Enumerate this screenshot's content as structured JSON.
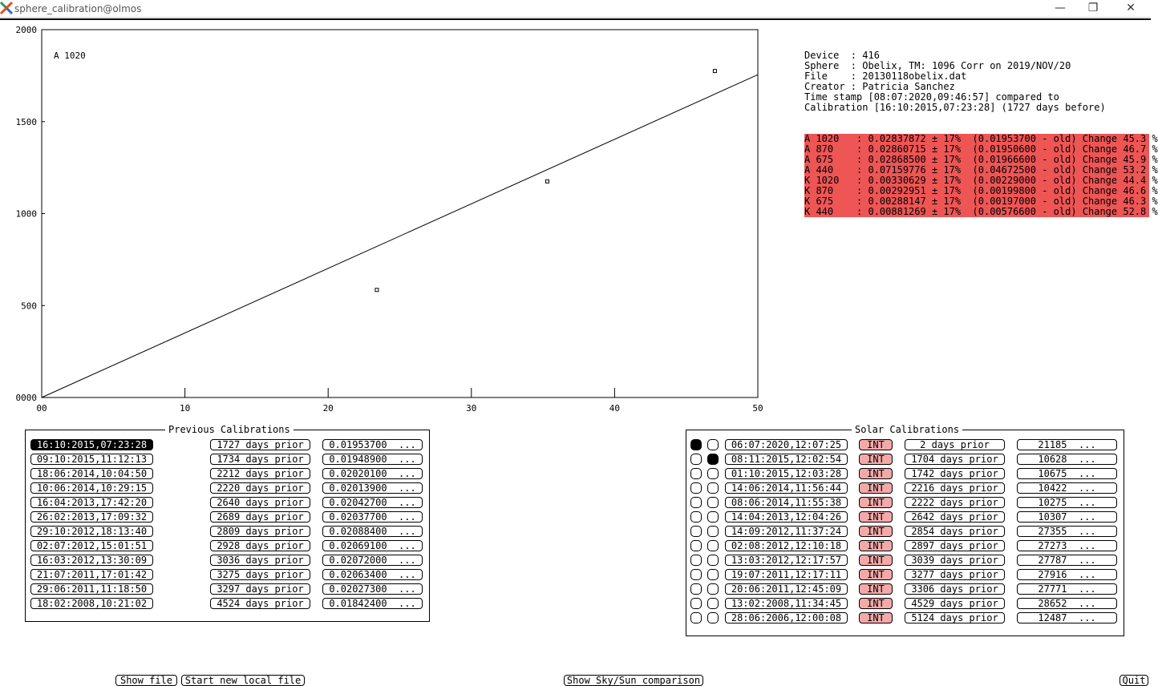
{
  "window": {
    "title": "sphere_calibration@olmos",
    "icon": "x-app-icon",
    "controls": {
      "minimize": "—",
      "restore": "❐",
      "close": "✕"
    }
  },
  "chart_data": {
    "type": "scatter",
    "label": "A 1020",
    "xlim": [
      0,
      50
    ],
    "ylim": [
      0,
      2000
    ],
    "x_ticks": [
      0,
      10,
      20,
      30,
      40,
      50
    ],
    "x_tick_labels": [
      "00",
      "10",
      "20",
      "30",
      "40",
      "50"
    ],
    "y_ticks": [
      0,
      500,
      1000,
      1500,
      2000
    ],
    "y_tick_labels": [
      "0000",
      "500",
      "1000",
      "1500",
      "2000"
    ],
    "points": [
      {
        "x": 23.4,
        "y": 585
      },
      {
        "x": 35.3,
        "y": 1175
      },
      {
        "x": 47.0,
        "y": 1775
      }
    ],
    "fit_line": {
      "x": [
        0,
        50
      ],
      "y": [
        0,
        1755
      ]
    }
  },
  "info": {
    "lines": [
      "Device  : 416",
      "Sphere  : Obelix, TM: 1096 Corr on 2019/NOV/20",
      "File    : 20130118obelix.dat",
      "Creator : Patricia Sanchez",
      "Time stamp [08:07:2020,09:46:57] compared to",
      "Calibration [16:10:2015,07:23:28] (1727 days before)"
    ],
    "alerts": [
      "A 1020   : 0.02837872 ± 17%  (0.01953700 - old) Change 45.3 %",
      "A 870    : 0.02860715 ± 17%  (0.01950600 - old) Change 46.7 %",
      "A 675    : 0.02868500 ± 17%  (0.01966600 - old) Change 45.9 %",
      "A 440    : 0.07159776 ± 17%  (0.04672500 - old) Change 53.2 %",
      "K 1020   : 0.00330629 ± 17%  (0.00229000 - old) Change 44.4 %",
      "K 870    : 0.00292951 ± 17%  (0.00199800 - old) Change 46.6 %",
      "K 675    : 0.00288147 ± 17%  (0.00197000 - old) Change 46.3 %",
      "K 440    : 0.00881269 ± 17%  (0.00576600 - old) Change 52.8 %"
    ],
    "alert_color": "#ee5555"
  },
  "previous": {
    "title": "Previous Calibrations",
    "rows": [
      {
        "date": "16:10:2015,07:23:28",
        "prior": "1727 days prior",
        "value": "0.01953700  ...",
        "selected": true
      },
      {
        "date": "09:10:2015,11:12:13",
        "prior": "1734 days prior",
        "value": "0.01948900  ...",
        "selected": false
      },
      {
        "date": "18:06:2014,10:04:50",
        "prior": "2212 days prior",
        "value": "0.02020100  ...",
        "selected": false
      },
      {
        "date": "10:06:2014,10:29:15",
        "prior": "2220 days prior",
        "value": "0.02013900  ...",
        "selected": false
      },
      {
        "date": "16:04:2013,17:42:20",
        "prior": "2640 days prior",
        "value": "0.02042700  ...",
        "selected": false
      },
      {
        "date": "26:02:2013,17:09:32",
        "prior": "2689 days prior",
        "value": "0.02037700  ...",
        "selected": false
      },
      {
        "date": "29:10:2012,18:13:40",
        "prior": "2809 days prior",
        "value": "0.02088400  ...",
        "selected": false
      },
      {
        "date": "02:07:2012,15:01:51",
        "prior": "2928 days prior",
        "value": "0.02069100  ...",
        "selected": false
      },
      {
        "date": "16:03:2012,13:30:09",
        "prior": "3036 days prior",
        "value": "0.02072000  ...",
        "selected": false
      },
      {
        "date": "21:07:2011,17:01:42",
        "prior": "3275 days prior",
        "value": "0.02063400  ...",
        "selected": false
      },
      {
        "date": "29:06:2011,11:18:50",
        "prior": "3297 days prior",
        "value": "0.02027300  ...",
        "selected": false
      },
      {
        "date": "18:02:2008,10:21:02",
        "prior": "4524 days prior",
        "value": "0.01842400  ...",
        "selected": false
      }
    ]
  },
  "solar": {
    "title": "Solar Calibrations",
    "rows": [
      {
        "r1": true,
        "r2": false,
        "date": "06:07:2020,12:07:25",
        "tag": "INT",
        "prior": "2 days prior",
        "value": "21185  ..."
      },
      {
        "r1": false,
        "r2": true,
        "date": "08:11:2015,12:02:54",
        "tag": "INT",
        "prior": "1704 days prior",
        "value": "10628  ..."
      },
      {
        "r1": false,
        "r2": false,
        "date": "01:10:2015,12:03:28",
        "tag": "INT",
        "prior": "1742 days prior",
        "value": "10675  ..."
      },
      {
        "r1": false,
        "r2": false,
        "date": "14:06:2014,11:56:44",
        "tag": "INT",
        "prior": "2216 days prior",
        "value": "10422  ..."
      },
      {
        "r1": false,
        "r2": false,
        "date": "08:06:2014,11:55:38",
        "tag": "INT",
        "prior": "2222 days prior",
        "value": "10275  ..."
      },
      {
        "r1": false,
        "r2": false,
        "date": "14:04:2013,12:04:26",
        "tag": "INT",
        "prior": "2642 days prior",
        "value": "10307  ..."
      },
      {
        "r1": false,
        "r2": false,
        "date": "14:09:2012,11:37:24",
        "tag": "INT",
        "prior": "2854 days prior",
        "value": "27355  ..."
      },
      {
        "r1": false,
        "r2": false,
        "date": "02:08:2012,12:10:18",
        "tag": "INT",
        "prior": "2897 days prior",
        "value": "27273  ..."
      },
      {
        "r1": false,
        "r2": false,
        "date": "13:03:2012,12:17:57",
        "tag": "INT",
        "prior": "3039 days prior",
        "value": "27787  ..."
      },
      {
        "r1": false,
        "r2": false,
        "date": "19:07:2011,12:17:11",
        "tag": "INT",
        "prior": "3277 days prior",
        "value": "27916  ..."
      },
      {
        "r1": false,
        "r2": false,
        "date": "20:06:2011,12:45:09",
        "tag": "INT",
        "prior": "3306 days prior",
        "value": "27771  ..."
      },
      {
        "r1": false,
        "r2": false,
        "date": "13:02:2008,11:34:45",
        "tag": "INT",
        "prior": "4529 days prior",
        "value": "28652  ..."
      },
      {
        "r1": false,
        "r2": false,
        "date": "28:06:2006,12:00:08",
        "tag": "INT",
        "prior": "5124 days prior",
        "value": "12487  ..."
      }
    ],
    "tag_color": "#f4a9a9"
  },
  "buttons": {
    "show_file": "Show file",
    "start_new": "Start new local file",
    "show_sky_sun": "Show Sky/Sun comparison",
    "quit": "Quit"
  }
}
